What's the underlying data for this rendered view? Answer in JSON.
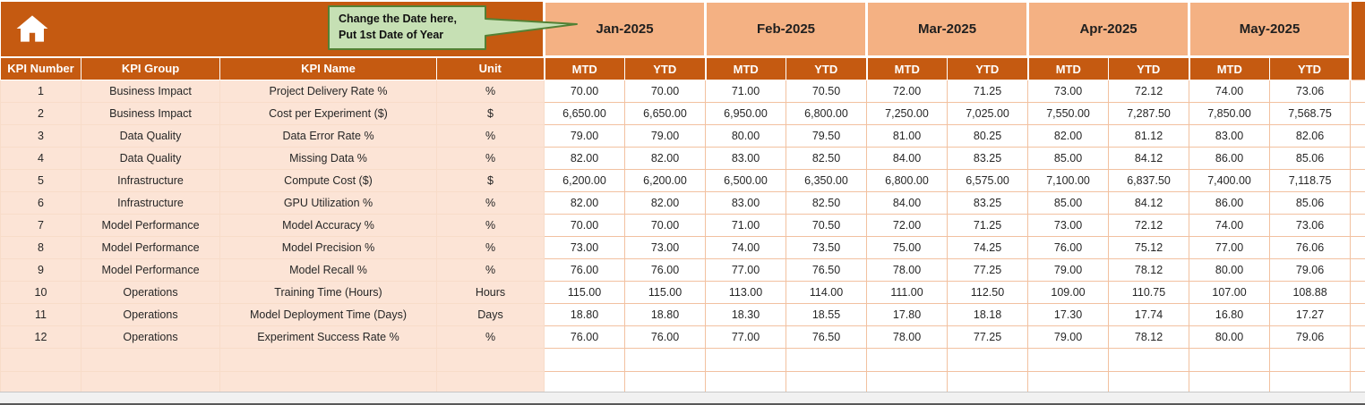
{
  "callout": {
    "line1": "Change the Date here,",
    "line2": "Put 1st Date of Year"
  },
  "table": {
    "months": [
      "Jan-2025",
      "Feb-2025",
      "Mar-2025",
      "Apr-2025",
      "May-2025"
    ],
    "sub_headers": [
      "MTD",
      "YTD"
    ],
    "left_headers": [
      "KPI Number",
      "KPI Group",
      "KPI Name",
      "Unit"
    ],
    "rows": [
      {
        "number": "1",
        "group": "Business Impact",
        "name": "Project Delivery Rate %",
        "unit": "%",
        "values": [
          "70.00",
          "70.00",
          "71.00",
          "70.50",
          "72.00",
          "71.25",
          "73.00",
          "72.12",
          "74.00",
          "73.06"
        ]
      },
      {
        "number": "2",
        "group": "Business Impact",
        "name": "Cost per Experiment ($)",
        "unit": "$",
        "values": [
          "6,650.00",
          "6,650.00",
          "6,950.00",
          "6,800.00",
          "7,250.00",
          "7,025.00",
          "7,550.00",
          "7,287.50",
          "7,850.00",
          "7,568.75"
        ]
      },
      {
        "number": "3",
        "group": "Data Quality",
        "name": "Data Error Rate %",
        "unit": "%",
        "values": [
          "79.00",
          "79.00",
          "80.00",
          "79.50",
          "81.00",
          "80.25",
          "82.00",
          "81.12",
          "83.00",
          "82.06"
        ]
      },
      {
        "number": "4",
        "group": "Data Quality",
        "name": "Missing Data %",
        "unit": "%",
        "values": [
          "82.00",
          "82.00",
          "83.00",
          "82.50",
          "84.00",
          "83.25",
          "85.00",
          "84.12",
          "86.00",
          "85.06"
        ]
      },
      {
        "number": "5",
        "group": "Infrastructure",
        "name": "Compute Cost ($)",
        "unit": "$",
        "values": [
          "6,200.00",
          "6,200.00",
          "6,500.00",
          "6,350.00",
          "6,800.00",
          "6,575.00",
          "7,100.00",
          "6,837.50",
          "7,400.00",
          "7,118.75"
        ]
      },
      {
        "number": "6",
        "group": "Infrastructure",
        "name": "GPU Utilization %",
        "unit": "%",
        "values": [
          "82.00",
          "82.00",
          "83.00",
          "82.50",
          "84.00",
          "83.25",
          "85.00",
          "84.12",
          "86.00",
          "85.06"
        ]
      },
      {
        "number": "7",
        "group": "Model Performance",
        "name": "Model Accuracy %",
        "unit": "%",
        "values": [
          "70.00",
          "70.00",
          "71.00",
          "70.50",
          "72.00",
          "71.25",
          "73.00",
          "72.12",
          "74.00",
          "73.06"
        ]
      },
      {
        "number": "8",
        "group": "Model Performance",
        "name": "Model Precision %",
        "unit": "%",
        "values": [
          "73.00",
          "73.00",
          "74.00",
          "73.50",
          "75.00",
          "74.25",
          "76.00",
          "75.12",
          "77.00",
          "76.06"
        ]
      },
      {
        "number": "9",
        "group": "Model Performance",
        "name": "Model Recall %",
        "unit": "%",
        "values": [
          "76.00",
          "76.00",
          "77.00",
          "76.50",
          "78.00",
          "77.25",
          "79.00",
          "78.12",
          "80.00",
          "79.06"
        ]
      },
      {
        "number": "10",
        "group": "Operations",
        "name": "Training Time (Hours)",
        "unit": "Hours",
        "values": [
          "115.00",
          "115.00",
          "113.00",
          "114.00",
          "111.00",
          "112.50",
          "109.00",
          "110.75",
          "107.00",
          "108.88"
        ]
      },
      {
        "number": "11",
        "group": "Operations",
        "name": "Model Deployment Time (Days)",
        "unit": "Days",
        "values": [
          "18.80",
          "18.80",
          "18.30",
          "18.55",
          "17.80",
          "18.18",
          "17.30",
          "17.74",
          "16.80",
          "17.27"
        ]
      },
      {
        "number": "12",
        "group": "Operations",
        "name": "Experiment Success Rate %",
        "unit": "%",
        "values": [
          "76.00",
          "76.00",
          "77.00",
          "76.50",
          "78.00",
          "77.25",
          "79.00",
          "78.12",
          "80.00",
          "79.06"
        ]
      }
    ]
  },
  "colors": {
    "header_rust": "#C55A11",
    "month_band": "#F4B183",
    "left_band": "#FCE4D6",
    "grid_line": "#F2C1A0",
    "callout_fill": "#C6E0B4",
    "callout_border": "#538135"
  }
}
